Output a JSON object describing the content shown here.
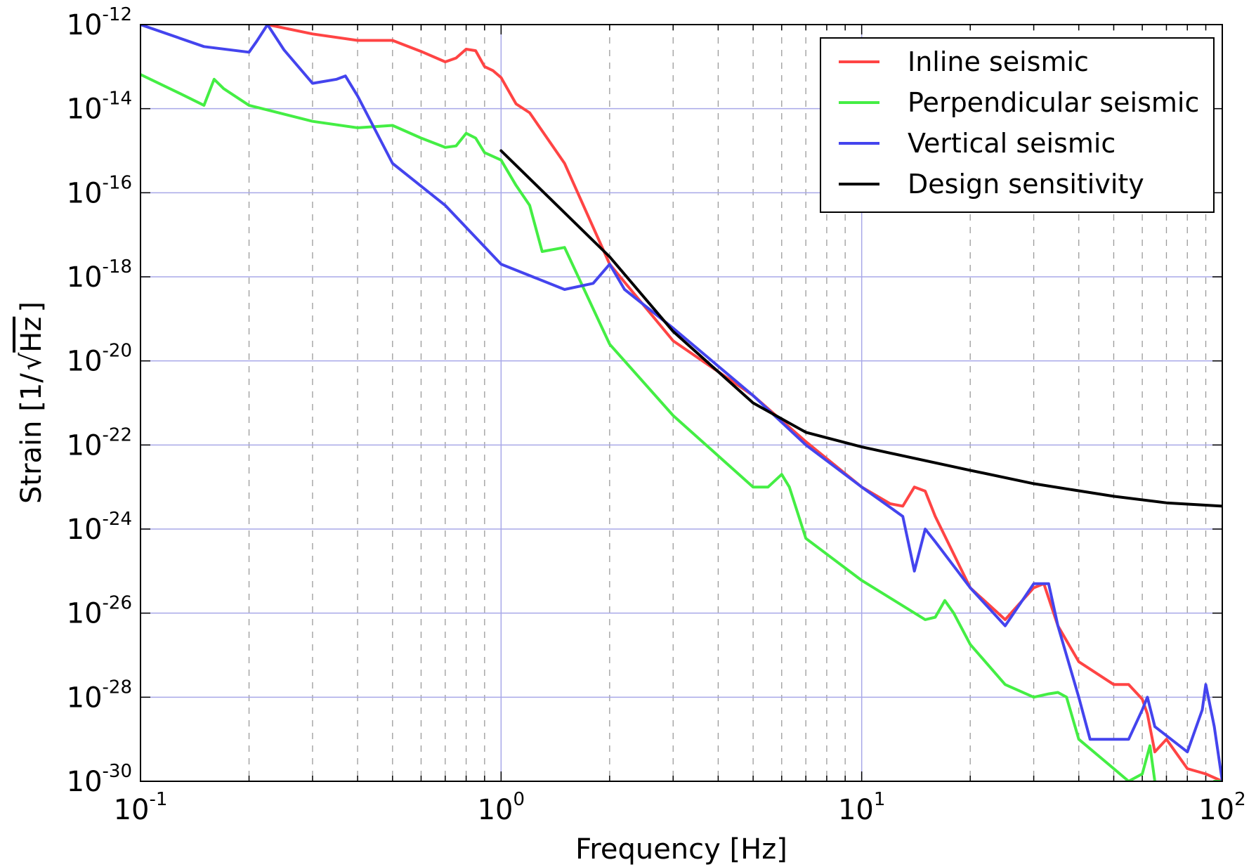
{
  "chart_data": {
    "type": "line",
    "xlabel": "Frequency [Hz]",
    "ylabel": "Strain [1/√Hz]",
    "ylabel_parts": {
      "prefix": "Strain [1/",
      "radicand": "Hz",
      "suffix": "]"
    },
    "x_scale": "log",
    "y_scale": "log",
    "xlim": [
      0.1,
      100
    ],
    "ylim": [
      1e-30,
      1e-12
    ],
    "x_ticks": [
      {
        "value": 0.1,
        "base": "10",
        "exp": "-1"
      },
      {
        "value": 1,
        "base": "10",
        "exp": "0"
      },
      {
        "value": 10,
        "base": "10",
        "exp": "1"
      },
      {
        "value": 100,
        "base": "10",
        "exp": "2"
      }
    ],
    "y_ticks": [
      {
        "value": 1e-30,
        "base": "10",
        "exp": "-30"
      },
      {
        "value": 1e-28,
        "base": "10",
        "exp": "-28"
      },
      {
        "value": 1e-26,
        "base": "10",
        "exp": "-26"
      },
      {
        "value": 1e-24,
        "base": "10",
        "exp": "-24"
      },
      {
        "value": 1e-22,
        "base": "10",
        "exp": "-22"
      },
      {
        "value": 1e-20,
        "base": "10",
        "exp": "-20"
      },
      {
        "value": 1e-18,
        "base": "10",
        "exp": "-18"
      },
      {
        "value": 1e-16,
        "base": "10",
        "exp": "-16"
      },
      {
        "value": 1e-14,
        "base": "10",
        "exp": "-14"
      },
      {
        "value": 1e-12,
        "base": "10",
        "exp": "-12"
      }
    ],
    "grid": true,
    "legend_position": "top-right",
    "series": [
      {
        "name": "Inline seismic",
        "color": "#ff4444",
        "points": [
          [
            0.225,
            1e-12
          ],
          [
            0.3,
            6e-13
          ],
          [
            0.4,
            4.2e-13
          ],
          [
            0.5,
            4.2e-13
          ],
          [
            0.6,
            2.3e-13
          ],
          [
            0.7,
            1.3e-13
          ],
          [
            0.75,
            1.6e-13
          ],
          [
            0.8,
            2.6e-13
          ],
          [
            0.85,
            2.4e-13
          ],
          [
            0.9,
            1e-13
          ],
          [
            0.95,
            8e-14
          ],
          [
            1.0,
            5.5e-14
          ],
          [
            1.1,
            1.3e-14
          ],
          [
            1.2,
            8e-15
          ],
          [
            1.5,
            5e-16
          ],
          [
            2.0,
            2e-18
          ],
          [
            3.0,
            3e-20
          ],
          [
            5.0,
            1.5e-21
          ],
          [
            7.0,
            1.2e-22
          ],
          [
            10.0,
            1e-23
          ],
          [
            12.0,
            4e-24
          ],
          [
            13.0,
            3.5e-24
          ],
          [
            14.0,
            1e-23
          ],
          [
            15.0,
            8e-24
          ],
          [
            16.0,
            2e-24
          ],
          [
            20.0,
            4e-26
          ],
          [
            25.0,
            7e-27
          ],
          [
            30.0,
            4e-26
          ],
          [
            32.0,
            5e-26
          ],
          [
            35.0,
            5e-27
          ],
          [
            40.0,
            7e-28
          ],
          [
            50.0,
            2e-28
          ],
          [
            55.0,
            2e-28
          ],
          [
            60.0,
            9e-29
          ],
          [
            62.0,
            4e-29
          ],
          [
            65.0,
            5e-30
          ],
          [
            70.0,
            1e-29
          ],
          [
            80.0,
            2e-30
          ],
          [
            90.0,
            1.5e-30
          ],
          [
            100.0,
            1e-30
          ]
        ]
      },
      {
        "name": "Perpendicular seismic",
        "color": "#44ee44",
        "points": [
          [
            0.1,
            6.5e-14
          ],
          [
            0.13,
            2.2e-14
          ],
          [
            0.15,
            1.2e-14
          ],
          [
            0.16,
            5e-14
          ],
          [
            0.17,
            3e-14
          ],
          [
            0.2,
            1.2e-14
          ],
          [
            0.3,
            5e-15
          ],
          [
            0.4,
            3.5e-15
          ],
          [
            0.5,
            4e-15
          ],
          [
            0.6,
            2e-15
          ],
          [
            0.7,
            1.2e-15
          ],
          [
            0.75,
            1.3e-15
          ],
          [
            0.8,
            2.6e-15
          ],
          [
            0.85,
            2e-15
          ],
          [
            0.9,
            9e-16
          ],
          [
            1.0,
            6e-16
          ],
          [
            1.1,
            1.5e-16
          ],
          [
            1.2,
            5e-17
          ],
          [
            1.3,
            4e-18
          ],
          [
            1.5,
            5e-18
          ],
          [
            2.0,
            2.5e-20
          ],
          [
            3.0,
            5e-22
          ],
          [
            5.0,
            1e-23
          ],
          [
            5.5,
            1e-23
          ],
          [
            6.0,
            2e-23
          ],
          [
            6.3,
            1e-23
          ],
          [
            7.0,
            6e-25
          ],
          [
            10.0,
            6e-26
          ],
          [
            15.0,
            7e-27
          ],
          [
            16.0,
            8e-27
          ],
          [
            17.0,
            2e-26
          ],
          [
            18.0,
            1e-26
          ],
          [
            20.0,
            1.8e-27
          ],
          [
            25.0,
            2e-28
          ],
          [
            30.0,
            1e-28
          ],
          [
            33.0,
            1.2e-28
          ],
          [
            35.0,
            1.3e-28
          ],
          [
            37.0,
            1e-28
          ],
          [
            40.0,
            1e-29
          ],
          [
            50.0,
            2e-30
          ],
          [
            55.0,
            1e-30
          ],
          [
            60.0,
            1.5e-30
          ],
          [
            63.0,
            7e-30
          ],
          [
            65.0,
            1e-30
          ],
          [
            90.0,
            1e-31
          ],
          [
            95.0,
            1e-30
          ],
          [
            100.0,
            1e-30
          ]
        ]
      },
      {
        "name": "Vertical seismic",
        "color": "#4444ee",
        "points": [
          [
            0.1,
            1e-12
          ],
          [
            0.15,
            3e-13
          ],
          [
            0.2,
            2.2e-13
          ],
          [
            0.21,
            4e-13
          ],
          [
            0.225,
            1e-12
          ],
          [
            0.25,
            2.5e-13
          ],
          [
            0.3,
            4e-14
          ],
          [
            0.35,
            5e-14
          ],
          [
            0.37,
            6e-14
          ],
          [
            0.4,
            2e-14
          ],
          [
            0.5,
            5e-16
          ],
          [
            0.7,
            5e-17
          ],
          [
            1.0,
            2e-18
          ],
          [
            1.5,
            5e-19
          ],
          [
            1.8,
            7e-19
          ],
          [
            2.0,
            2e-18
          ],
          [
            2.2,
            5e-19
          ],
          [
            3.0,
            6e-20
          ],
          [
            5.0,
            1.5e-21
          ],
          [
            7.0,
            1e-22
          ],
          [
            10.0,
            1e-23
          ],
          [
            13.0,
            2e-24
          ],
          [
            14.0,
            1e-25
          ],
          [
            15.0,
            1e-24
          ],
          [
            16.0,
            5e-25
          ],
          [
            20.0,
            4e-26
          ],
          [
            25.0,
            5e-27
          ],
          [
            30.0,
            5e-26
          ],
          [
            33.0,
            5e-26
          ],
          [
            35.0,
            5e-27
          ],
          [
            40.0,
            1e-28
          ],
          [
            43.0,
            1e-29
          ],
          [
            50.0,
            1e-29
          ],
          [
            55.0,
            1e-29
          ],
          [
            60.0,
            5e-29
          ],
          [
            62.0,
            1e-28
          ],
          [
            65.0,
            2e-29
          ],
          [
            80.0,
            5e-30
          ],
          [
            88.0,
            5e-29
          ],
          [
            90.0,
            2e-28
          ],
          [
            95.0,
            2e-29
          ],
          [
            100.0,
            1e-30
          ]
        ]
      },
      {
        "name": "Design sensitivity",
        "color": "#000000",
        "points": [
          [
            1.0,
            1e-15
          ],
          [
            2.0,
            3e-18
          ],
          [
            3.0,
            5e-20
          ],
          [
            5.0,
            1e-21
          ],
          [
            7.0,
            2e-22
          ],
          [
            10.0,
            9e-23
          ],
          [
            20.0,
            2.5e-23
          ],
          [
            30.0,
            1.2e-23
          ],
          [
            50.0,
            6e-24
          ],
          [
            70.0,
            4.2e-24
          ],
          [
            100.0,
            3.5e-24
          ]
        ]
      }
    ]
  }
}
